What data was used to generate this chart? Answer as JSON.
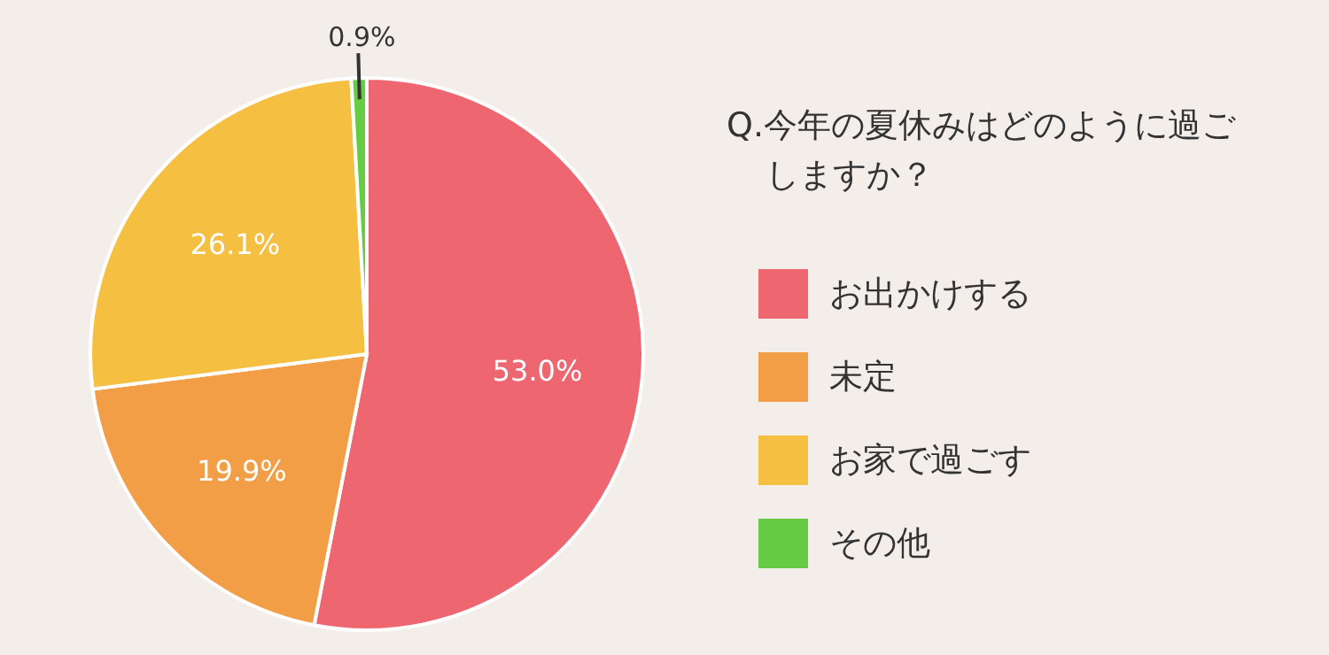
{
  "chart_data": {
    "type": "pie",
    "title": "Q.今年の夏休みはどのように過ごしますか？",
    "categories": [
      "お出かけする",
      "未定",
      "お家で過ごす",
      "その他"
    ],
    "values": [
      53.0,
      19.9,
      26.1,
      0.9
    ],
    "colors": [
      "#ee6670",
      "#f29e47",
      "#f5bf42",
      "#66cc44"
    ],
    "value_labels": [
      "53.0%",
      "19.9%",
      "26.1%",
      "0.9%"
    ],
    "legend": "right"
  }
}
